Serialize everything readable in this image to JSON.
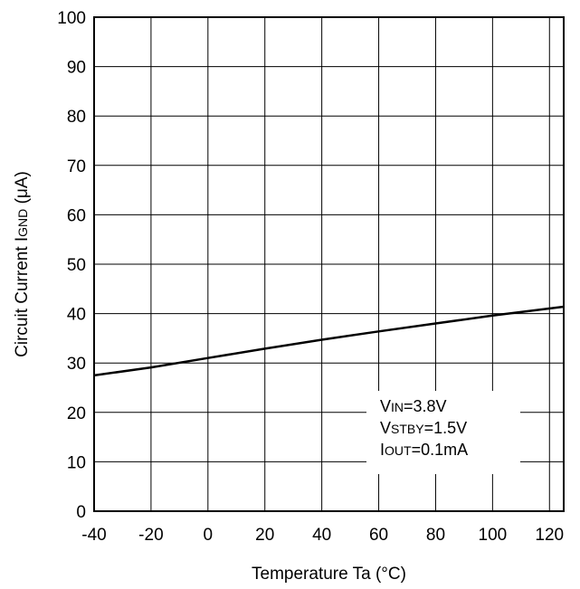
{
  "chart_data": {
    "type": "line",
    "xlabel": "Temperature Ta (°C)",
    "ylabel_main": "Circuit Current I",
    "ylabel_sub": "GND",
    "ylabel_tail": " (μA)",
    "xlim": [
      -40,
      125
    ],
    "ylim": [
      0,
      100
    ],
    "x_ticks": [
      -40,
      -20,
      0,
      20,
      40,
      60,
      80,
      100,
      120
    ],
    "y_ticks": [
      0,
      10,
      20,
      30,
      40,
      50,
      60,
      70,
      80,
      90,
      100
    ],
    "grid": true,
    "series": [
      {
        "x": [
          -40,
          -20,
          0,
          20,
          40,
          60,
          80,
          100,
          125
        ],
        "y": [
          27.5,
          29.1,
          31.0,
          32.9,
          34.7,
          36.4,
          38.0,
          39.6,
          41.4
        ]
      }
    ],
    "annotations": [
      {
        "main": "V",
        "sub": "IN",
        "tail": "=3.8V"
      },
      {
        "main": "V",
        "sub": "STBY",
        "tail": "=1.5V"
      },
      {
        "main": "I",
        "sub": "OUT",
        "tail": "=0.1mA"
      }
    ],
    "colors": {
      "line": "#000000",
      "grid": "#000000",
      "background": "#ffffff"
    }
  }
}
